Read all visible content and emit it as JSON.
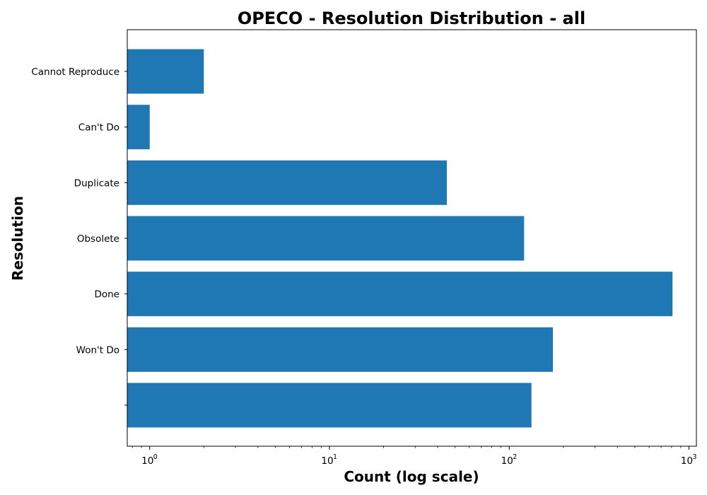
{
  "chart_data": {
    "type": "bar",
    "orientation": "horizontal",
    "title": "OPECO - Resolution Distribution - all",
    "xlabel": "Count (log scale)",
    "ylabel": "Resolution",
    "x_scale": "log",
    "xlim": [
      0.75,
      1100
    ],
    "x_tick_labels": [
      "10",
      "10",
      "10",
      "10"
    ],
    "x_tick_exponents": [
      "0",
      "1",
      "2",
      "3"
    ],
    "x_tick_values": [
      1,
      10,
      100,
      1000
    ],
    "categories": [
      "",
      "Won't Do",
      "Done",
      "Obsolete",
      "Duplicate",
      "Can't Do",
      "Cannot Reproduce"
    ],
    "values": [
      133,
      175,
      810,
      121,
      45,
      1,
      2
    ],
    "bar_color": "#1f77b4",
    "grid": false,
    "legend": "none"
  }
}
